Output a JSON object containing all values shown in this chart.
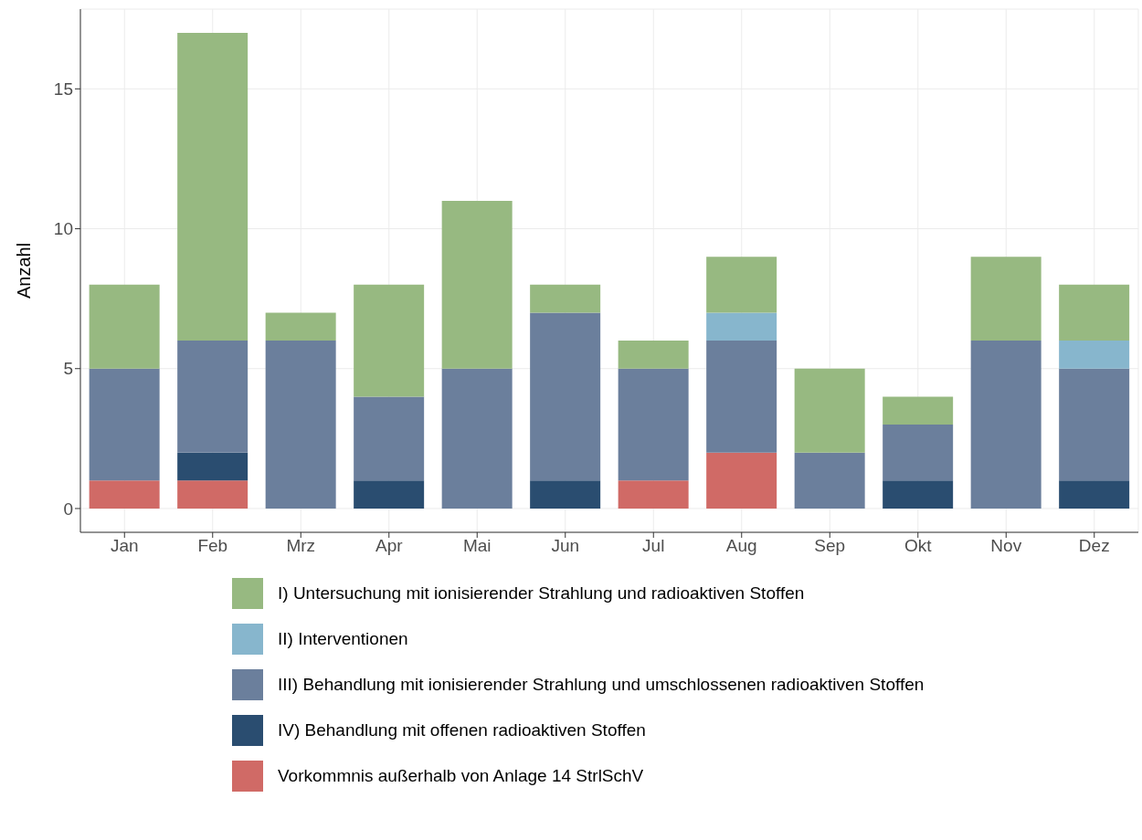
{
  "chart_data": {
    "type": "bar",
    "stacked": true,
    "ylabel": "Anzahl",
    "categories": [
      "Jan",
      "Feb",
      "Mrz",
      "Apr",
      "Mai",
      "Jun",
      "Jul",
      "Aug",
      "Sep",
      "Okt",
      "Nov",
      "Dez"
    ],
    "series": [
      {
        "name": "Vorkommnis außerhalb von Anlage 14 StrlSchV",
        "color": "#d06a66",
        "values": [
          1,
          1,
          0,
          0,
          0,
          0,
          1,
          2,
          0,
          0,
          0,
          0
        ]
      },
      {
        "name": "IV) Behandlung mit offenen radioaktiven Stoffen",
        "color": "#2a4d70",
        "values": [
          0,
          1,
          0,
          1,
          0,
          1,
          0,
          0,
          0,
          1,
          0,
          1
        ]
      },
      {
        "name": "III) Behandlung mit ionisierender Strahlung und umschlossenen radioaktiven Stoffen",
        "color": "#6b7f9c",
        "values": [
          4,
          4,
          6,
          3,
          5,
          6,
          4,
          4,
          2,
          2,
          6,
          4
        ]
      },
      {
        "name": "II) Interventionen",
        "color": "#87b6cd",
        "values": [
          0,
          0,
          0,
          0,
          0,
          0,
          0,
          1,
          0,
          0,
          0,
          1
        ]
      },
      {
        "name": "I) Untersuchung mit ionisierender Strahlung und radioaktiven Stoffen",
        "color": "#97b981",
        "values": [
          3,
          11,
          1,
          4,
          6,
          1,
          1,
          2,
          3,
          1,
          3,
          2
        ]
      }
    ],
    "ylim": [
      -0.85,
      17.85
    ],
    "yticks": [
      0,
      5,
      10,
      15
    ],
    "grid": true,
    "legend": "bottom"
  }
}
